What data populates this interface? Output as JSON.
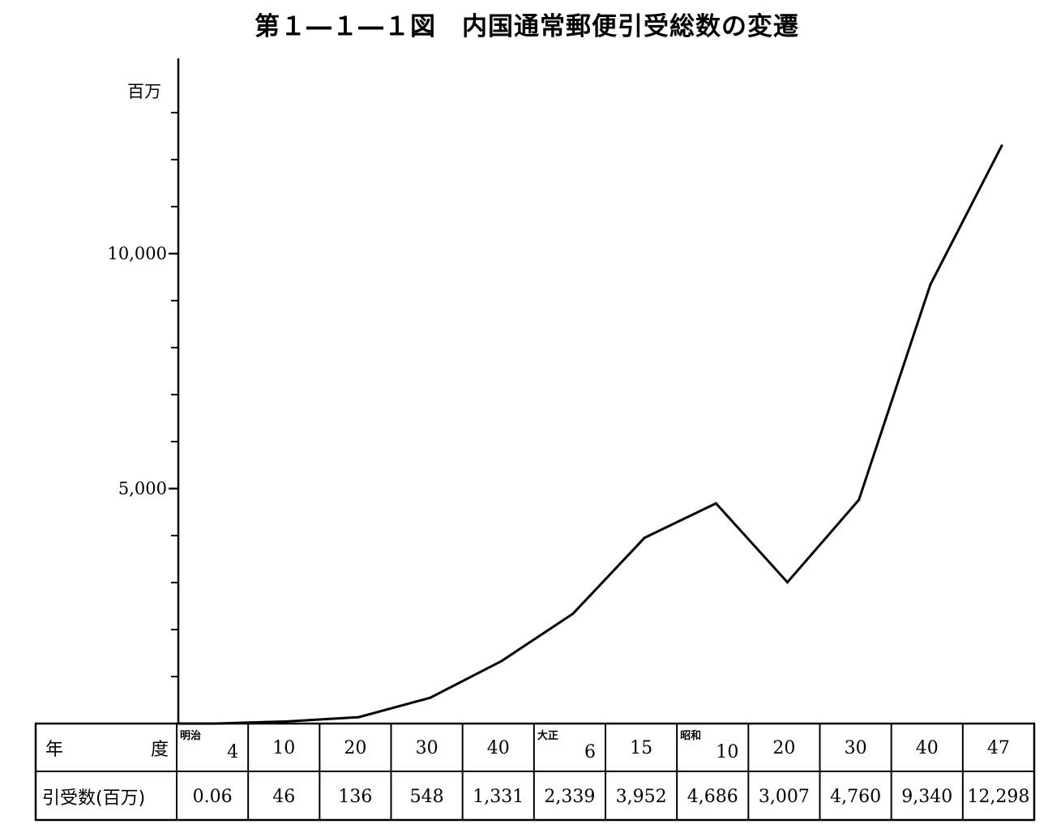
{
  "chart_data": {
    "type": "line",
    "title": "第１―１―１図　内国通常郵便引受総数の変遷",
    "ylabel": "百万",
    "ylim": [
      0,
      13000
    ],
    "y_ticks": [
      5000,
      10000
    ],
    "y_tick_labels": [
      "5,000",
      "10,000"
    ],
    "y_minor_step": 1000,
    "grid": false,
    "categories": [
      "4",
      "10",
      "20",
      "30",
      "40",
      "6",
      "15",
      "10",
      "20",
      "30",
      "40",
      "47"
    ],
    "eras": [
      "明治",
      "",
      "",
      "",
      "",
      "大正",
      "",
      "昭和",
      "",
      "",
      "",
      ""
    ],
    "series": [
      {
        "values": [
          0.06,
          46,
          136,
          548,
          1331,
          2339,
          3952,
          4686,
          3007,
          4760,
          9340,
          12298
        ]
      }
    ],
    "table": {
      "row_headers": {
        "year_left": "年",
        "year_right": "度",
        "count": "引受数(百万)"
      },
      "value_labels": [
        "0.06",
        "46",
        "136",
        "548",
        "1,331",
        "2,339",
        "3,952",
        "4,686",
        "3,007",
        "4,760",
        "9,340",
        "12,298"
      ]
    }
  }
}
